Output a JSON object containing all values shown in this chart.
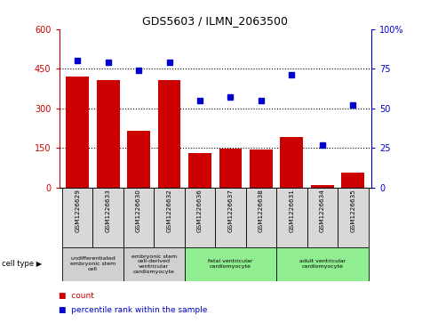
{
  "title": "GDS5603 / ILMN_2063500",
  "samples": [
    "GSM1226629",
    "GSM1226633",
    "GSM1226630",
    "GSM1226632",
    "GSM1226636",
    "GSM1226637",
    "GSM1226638",
    "GSM1226631",
    "GSM1226634",
    "GSM1226635"
  ],
  "counts": [
    420,
    405,
    215,
    405,
    130,
    148,
    145,
    190,
    8,
    55
  ],
  "percentiles": [
    80,
    79,
    74,
    79,
    55,
    57,
    55,
    71,
    27,
    52
  ],
  "count_ylim": [
    0,
    600
  ],
  "count_yticks": [
    0,
    150,
    300,
    450,
    600
  ],
  "percentile_ylim": [
    0,
    100
  ],
  "percentile_yticks": [
    0,
    25,
    50,
    75,
    100
  ],
  "bar_color": "#cc0000",
  "dot_color": "#0000cc",
  "cell_type_groups": [
    {
      "label": "undifferentiated\nembryonic stem\ncell",
      "start": 0,
      "end": 2,
      "color": "#d0d0d0"
    },
    {
      "label": "embryonic stem\ncell-derived\nventricular\ncardiomyocyte",
      "start": 2,
      "end": 4,
      "color": "#d0d0d0"
    },
    {
      "label": "fetal ventricular\ncardiomyocyte",
      "start": 4,
      "end": 7,
      "color": "#90ee90"
    },
    {
      "label": "adult ventricular\ncardiomyocyte",
      "start": 7,
      "end": 10,
      "color": "#90ee90"
    }
  ],
  "grid_linestyle": "dotted",
  "grid_color": "black",
  "sample_row_bg": "#d8d8d8",
  "legend_square_red": "#cc0000",
  "legend_square_blue": "#0000cc"
}
